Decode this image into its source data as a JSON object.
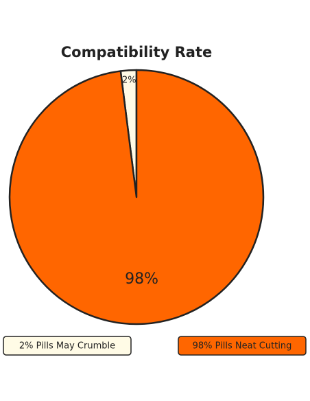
{
  "chart_data": {
    "type": "pie",
    "title": "Compatibility Rate",
    "categories": [
      "2% Pills May Crumble",
      "98% Pills Neat Cutting"
    ],
    "values": [
      2,
      98
    ],
    "value_labels": [
      "2%",
      "98%"
    ],
    "colors": [
      "#fffbe6",
      "#ff6600"
    ]
  }
}
